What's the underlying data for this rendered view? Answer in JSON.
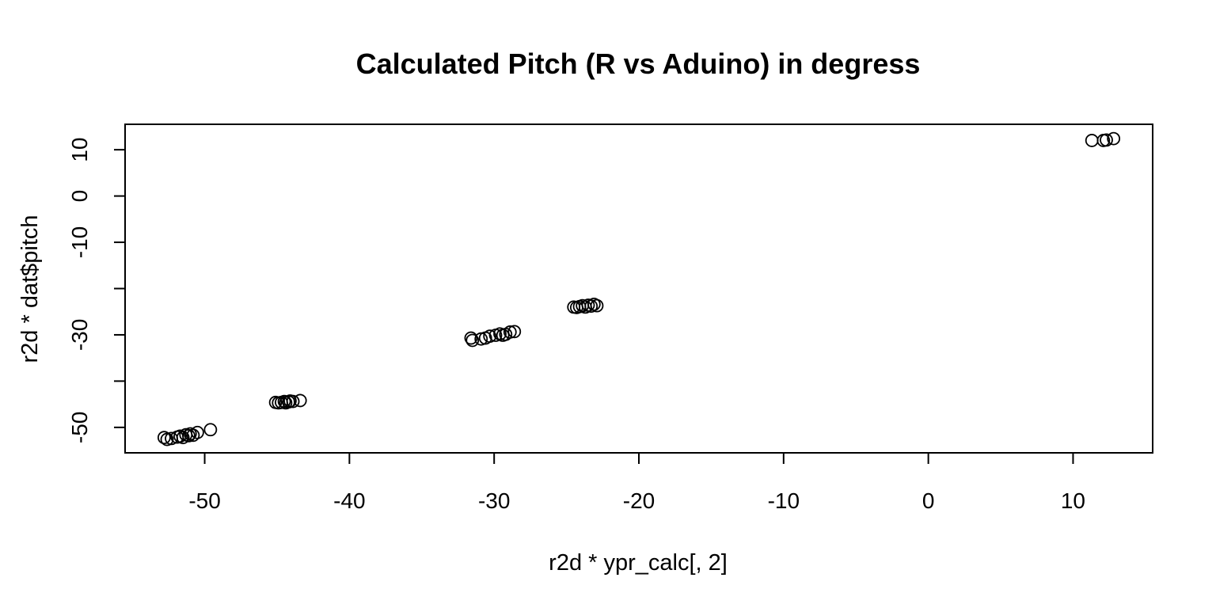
{
  "chart_data": {
    "type": "scatter",
    "title": "Calculated Pitch (R vs Aduino) in degress",
    "xlabel": "r2d * ypr_calc[, 2]",
    "ylabel": "r2d * dat$pitch",
    "xlim": [
      -55.5,
      15.5
    ],
    "ylim": [
      -55.5,
      15.5
    ],
    "xticks": [
      -50,
      -40,
      -30,
      -20,
      -10,
      0,
      10
    ],
    "yticks": [
      -50,
      -40,
      -30,
      -20,
      -10,
      0,
      10
    ],
    "ytick_labels_shown": [
      "-50",
      "-30",
      "-10",
      "0",
      "10"
    ],
    "grid": false,
    "marker": "open-circle",
    "color": "#000000",
    "points": [
      [
        -52.8,
        -52.2
      ],
      [
        -52.6,
        -52.6
      ],
      [
        -52.3,
        -52.4
      ],
      [
        -51.9,
        -52.1
      ],
      [
        -51.7,
        -51.9
      ],
      [
        -51.5,
        -52.2
      ],
      [
        -51.3,
        -51.6
      ],
      [
        -51.1,
        -51.8
      ],
      [
        -51.0,
        -51.4
      ],
      [
        -50.8,
        -51.7
      ],
      [
        -50.5,
        -51.1
      ],
      [
        -49.6,
        -50.5
      ],
      [
        -45.1,
        -44.6
      ],
      [
        -44.9,
        -44.7
      ],
      [
        -44.7,
        -44.6
      ],
      [
        -44.5,
        -44.4
      ],
      [
        -44.4,
        -44.7
      ],
      [
        -44.2,
        -44.5
      ],
      [
        -44.1,
        -44.3
      ],
      [
        -43.9,
        -44.4
      ],
      [
        -43.4,
        -44.2
      ],
      [
        -31.6,
        -30.7
      ],
      [
        -31.5,
        -31.2
      ],
      [
        -30.9,
        -30.9
      ],
      [
        -30.6,
        -30.7
      ],
      [
        -30.3,
        -30.3
      ],
      [
        -29.9,
        -30.1
      ],
      [
        -29.6,
        -29.8
      ],
      [
        -29.4,
        -30.1
      ],
      [
        -29.2,
        -29.9
      ],
      [
        -28.9,
        -29.4
      ],
      [
        -28.6,
        -29.3
      ],
      [
        -24.5,
        -24.0
      ],
      [
        -24.3,
        -24.1
      ],
      [
        -24.1,
        -23.9
      ],
      [
        -23.9,
        -23.7
      ],
      [
        -23.7,
        -24.0
      ],
      [
        -23.5,
        -23.6
      ],
      [
        -23.3,
        -23.8
      ],
      [
        -23.1,
        -23.4
      ],
      [
        -22.9,
        -23.7
      ],
      [
        11.3,
        12.0
      ],
      [
        12.1,
        12.0
      ],
      [
        12.3,
        12.1
      ],
      [
        12.8,
        12.4
      ]
    ]
  }
}
